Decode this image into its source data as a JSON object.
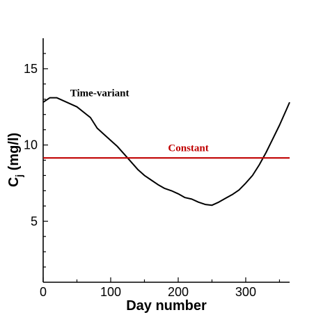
{
  "chart_data": {
    "type": "line",
    "xlabel": "Day number",
    "ylabel_main": "C",
    "ylabel_sub": "j",
    "ylabel_unit": " (mg/l)",
    "xlim": [
      0,
      365
    ],
    "ylim": [
      1,
      17
    ],
    "x_ticks": [
      0,
      100,
      200,
      300
    ],
    "y_ticks": [
      5,
      10,
      15
    ],
    "grid": false,
    "series": [
      {
        "name": "Time-variant",
        "color": "#000000",
        "x": [
          0,
          10,
          20,
          30,
          50,
          70,
          80,
          90,
          100,
          110,
          120,
          130,
          140,
          150,
          160,
          170,
          180,
          190,
          200,
          210,
          220,
          230,
          240,
          250,
          260,
          270,
          280,
          290,
          300,
          310,
          320,
          330,
          340,
          350,
          360,
          365
        ],
        "y": [
          12.8,
          13.1,
          13.1,
          12.9,
          12.5,
          11.8,
          11.1,
          10.7,
          10.3,
          9.9,
          9.4,
          8.9,
          8.4,
          8.0,
          7.7,
          7.4,
          7.15,
          7.0,
          6.8,
          6.55,
          6.45,
          6.25,
          6.1,
          6.05,
          6.25,
          6.5,
          6.75,
          7.05,
          7.5,
          8.0,
          8.7,
          9.5,
          10.4,
          11.3,
          12.3,
          12.8
        ]
      },
      {
        "name": "Constant",
        "color": "#c00000",
        "x": [
          0,
          365
        ],
        "y": [
          9.15,
          9.15
        ]
      }
    ],
    "annotations": [
      {
        "text": "Time-variant",
        "x": 40,
        "y": 13.2,
        "color": "#000000"
      },
      {
        "text": "Constant",
        "x": 185,
        "y": 9.6,
        "color": "#c00000"
      }
    ]
  }
}
